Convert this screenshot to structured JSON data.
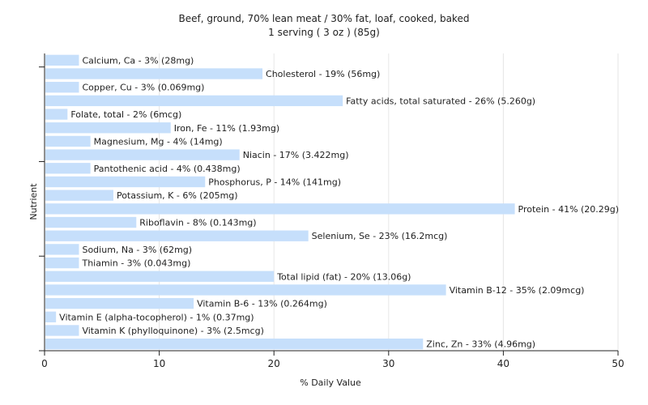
{
  "chart_data": {
    "type": "bar",
    "orientation": "horizontal",
    "title": "Beef, ground, 70% lean meat / 30% fat, loaf, cooked, baked",
    "subtitle": "1 serving ( 3 oz ) (85g)",
    "xlabel": "% Daily Value",
    "ylabel": "Nutrient",
    "xlim": [
      0,
      50
    ],
    "xticks": [
      0,
      10,
      20,
      30,
      40,
      50
    ],
    "grid": true,
    "colors": {
      "bar": "#c6dffb",
      "grid": "#e6e6e6",
      "axis": "#222222"
    },
    "bars": [
      {
        "nutrient": "Calcium, Ca",
        "value": 3,
        "label": "Calcium, Ca - 3% (28mg)"
      },
      {
        "nutrient": "Cholesterol",
        "value": 19,
        "label": "Cholesterol - 19% (56mg)"
      },
      {
        "nutrient": "Copper, Cu",
        "value": 3,
        "label": "Copper, Cu - 3% (0.069mg)"
      },
      {
        "nutrient": "Fatty acids, total saturated",
        "value": 26,
        "label": "Fatty acids, total saturated - 26% (5.260g)"
      },
      {
        "nutrient": "Folate, total",
        "value": 2,
        "label": "Folate, total - 2% (6mcg)"
      },
      {
        "nutrient": "Iron, Fe",
        "value": 11,
        "label": "Iron, Fe - 11% (1.93mg)"
      },
      {
        "nutrient": "Magnesium, Mg",
        "value": 4,
        "label": "Magnesium, Mg - 4% (14mg)"
      },
      {
        "nutrient": "Niacin",
        "value": 17,
        "label": "Niacin - 17% (3.422mg)"
      },
      {
        "nutrient": "Pantothenic acid",
        "value": 4,
        "label": "Pantothenic acid - 4% (0.438mg)"
      },
      {
        "nutrient": "Phosphorus, P",
        "value": 14,
        "label": "Phosphorus, P - 14% (141mg)"
      },
      {
        "nutrient": "Potassium, K",
        "value": 6,
        "label": "Potassium, K - 6% (205mg)"
      },
      {
        "nutrient": "Protein",
        "value": 41,
        "label": "Protein - 41% (20.29g)"
      },
      {
        "nutrient": "Riboflavin",
        "value": 8,
        "label": "Riboflavin - 8% (0.143mg)"
      },
      {
        "nutrient": "Selenium, Se",
        "value": 23,
        "label": "Selenium, Se - 23% (16.2mcg)"
      },
      {
        "nutrient": "Sodium, Na",
        "value": 3,
        "label": "Sodium, Na - 3% (62mg)"
      },
      {
        "nutrient": "Thiamin",
        "value": 3,
        "label": "Thiamin - 3% (0.043mg)"
      },
      {
        "nutrient": "Total lipid (fat)",
        "value": 20,
        "label": "Total lipid (fat) - 20% (13.06g)"
      },
      {
        "nutrient": "Vitamin B-12",
        "value": 35,
        "label": "Vitamin B-12 - 35% (2.09mcg)"
      },
      {
        "nutrient": "Vitamin B-6",
        "value": 13,
        "label": "Vitamin B-6 - 13% (0.264mg)"
      },
      {
        "nutrient": "Vitamin E (alpha-tocopherol)",
        "value": 1,
        "label": "Vitamin E (alpha-tocopherol) - 1% (0.37mg)"
      },
      {
        "nutrient": "Vitamin K (phylloquinone)",
        "value": 3,
        "label": "Vitamin K (phylloquinone) - 3% (2.5mcg)"
      },
      {
        "nutrient": "Zinc, Zn",
        "value": 33,
        "label": "Zinc, Zn - 33% (4.96mg)"
      }
    ]
  }
}
